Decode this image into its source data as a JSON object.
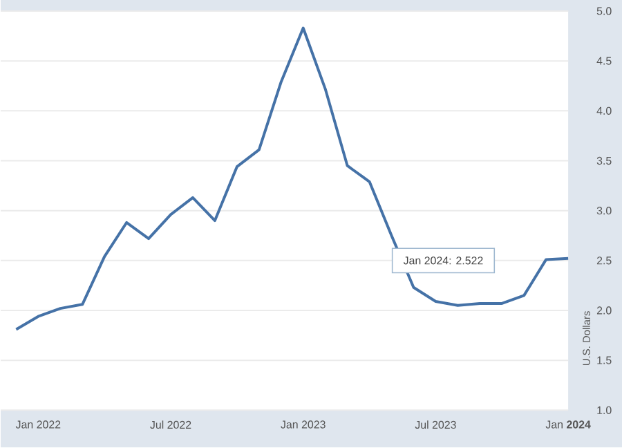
{
  "chart_data": {
    "type": "line",
    "ylabel": "U.S. Dollars",
    "x": [
      "2021-12",
      "2022-01",
      "2022-02",
      "2022-03",
      "2022-04",
      "2022-05",
      "2022-06",
      "2022-07",
      "2022-08",
      "2022-09",
      "2022-10",
      "2022-11",
      "2022-12",
      "2023-01",
      "2023-02",
      "2023-03",
      "2023-04",
      "2023-05",
      "2023-06",
      "2023-07",
      "2023-08",
      "2023-09",
      "2023-10",
      "2023-11",
      "2023-12",
      "2024-01"
    ],
    "series": [
      {
        "color": "#4572a7",
        "values": [
          1.81,
          1.94,
          2.02,
          2.06,
          2.54,
          2.88,
          2.72,
          2.96,
          3.13,
          2.9,
          3.44,
          3.61,
          4.29,
          4.83,
          4.22,
          3.45,
          3.29,
          2.75,
          2.23,
          2.09,
          2.05,
          2.07,
          2.07,
          2.15,
          2.51,
          2.522
        ]
      }
    ],
    "xlim": [
      "2021-11-10",
      "2024-01"
    ],
    "xticks": [
      {
        "value": "2022-01",
        "label": "Jan 2022"
      },
      {
        "value": "2022-07",
        "label": "Jul 2022"
      },
      {
        "value": "2023-01",
        "label": "Jan 2023"
      },
      {
        "value": "2023-07",
        "label": "Jul 2023"
      },
      {
        "value": "2024-01",
        "label": "Jan **2024**"
      }
    ],
    "ylim": [
      1.0,
      5.0
    ],
    "yticks": [
      {
        "value": 1,
        "label": "1.0"
      },
      1.5,
      {
        "value": 2,
        "label": "2.0"
      },
      2.5,
      {
        "value": 3,
        "label": "3.0"
      },
      3.5,
      {
        "value": 4,
        "label": "4.0"
      },
      4.5,
      {
        "value": 5,
        "label": "5.0"
      }
    ],
    "grid": "y",
    "marker": "none",
    "line_style": "solid",
    "annotations": [
      "Jan 2024: 2.522"
    ]
  }
}
